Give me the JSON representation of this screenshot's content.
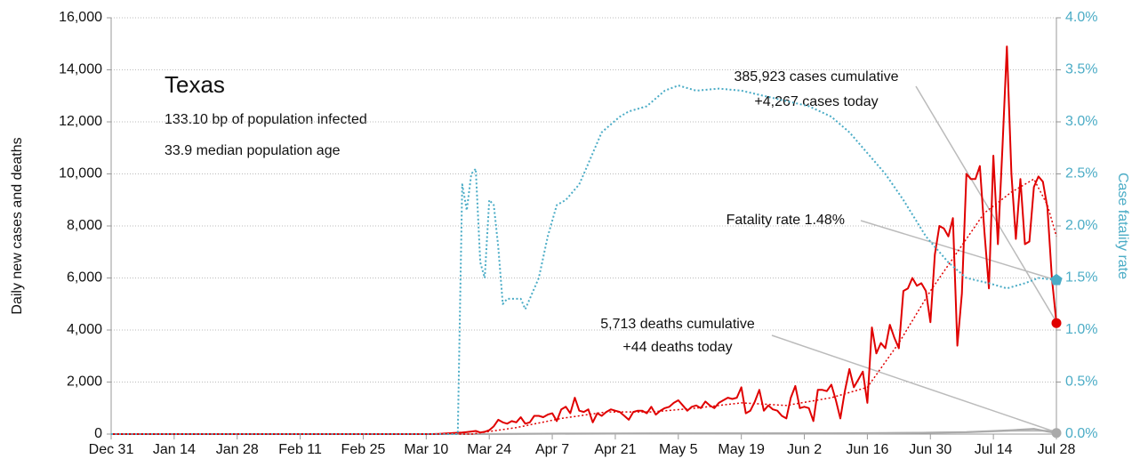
{
  "chart_data": {
    "type": "line",
    "title": "Texas",
    "subtitle": [
      "133.10 bp of population infected",
      "33.9 median population age"
    ],
    "ylabel": "Daily new cases and deaths",
    "y2label": "Case fatality rate",
    "xlim": [
      0,
      210
    ],
    "xticks": [
      {
        "value": 0,
        "label": "Dec 31"
      },
      {
        "value": 14,
        "label": "Jan 14"
      },
      {
        "value": 28,
        "label": "Jan 28"
      },
      {
        "value": 42,
        "label": "Feb 11"
      },
      {
        "value": 56,
        "label": "Feb 25"
      },
      {
        "value": 70,
        "label": "Mar 10"
      },
      {
        "value": 84,
        "label": "Mar 24"
      },
      {
        "value": 98,
        "label": "Apr 7"
      },
      {
        "value": 112,
        "label": "Apr 21"
      },
      {
        "value": 126,
        "label": "May 5"
      },
      {
        "value": 140,
        "label": "May 19"
      },
      {
        "value": 154,
        "label": "Jun 2"
      },
      {
        "value": 168,
        "label": "Jun 16"
      },
      {
        "value": 182,
        "label": "Jun 30"
      },
      {
        "value": 196,
        "label": "Jul 14"
      },
      {
        "value": 210,
        "label": "Jul 28"
      }
    ],
    "ylim": [
      0,
      16000
    ],
    "yticks": [
      0,
      {
        "value": 2000,
        "label": "2,000"
      },
      {
        "value": 4000,
        "label": "4,000"
      },
      {
        "value": 6000,
        "label": "6,000"
      },
      {
        "value": 8000,
        "label": "8,000"
      },
      {
        "value": 10000,
        "label": "10,000"
      },
      {
        "value": 12000,
        "label": "12,000"
      },
      {
        "value": 14000,
        "label": "14,000"
      },
      {
        "value": 16000,
        "label": "16,000"
      }
    ],
    "y2lim": [
      0,
      4
    ],
    "y2ticks": [
      {
        "value": 0,
        "label": "0.0%"
      },
      {
        "value": 0.5,
        "label": "0.5%"
      },
      {
        "value": 1,
        "label": "1.0%"
      },
      {
        "value": 1.5,
        "label": "1.5%"
      },
      {
        "value": 2,
        "label": "2.0%"
      },
      {
        "value": 2.5,
        "label": "2.5%"
      },
      {
        "value": 3,
        "label": "3.0%"
      },
      {
        "value": 3.5,
        "label": "3.5%"
      },
      {
        "value": 4,
        "label": "4.0%"
      }
    ],
    "y2color": "#4bacc6",
    "grid": true,
    "series": [
      {
        "color": "#bbbbbb",
        "style": "solid",
        "width": 2,
        "x": [
          0,
          80,
          120,
          170,
          190,
          200,
          210
        ],
        "values": [
          0,
          0,
          20,
          30,
          70,
          130,
          130
        ]
      },
      {
        "color": "#aaaaaa",
        "style": "solid",
        "width": 2,
        "marker": "circle",
        "x": [
          0,
          80,
          100,
          130,
          160,
          180,
          190,
          196,
          200,
          205,
          208,
          210
        ],
        "values": [
          0,
          0,
          20,
          30,
          30,
          50,
          80,
          120,
          150,
          200,
          100,
          44
        ]
      },
      {
        "color": "#e00000",
        "style": "dotted",
        "width": 1.5,
        "x": [
          0,
          80,
          84,
          90,
          100,
          110,
          120,
          130,
          140,
          150,
          160,
          168,
          175,
          182,
          188,
          194,
          200,
          205,
          208,
          210
        ],
        "values": [
          0,
          0,
          100,
          250,
          600,
          850,
          850,
          1000,
          1200,
          1100,
          1400,
          1800,
          3500,
          5500,
          7000,
          8500,
          9300,
          9800,
          8800,
          7600
        ]
      },
      {
        "color": "#e00000",
        "style": "solid",
        "width": 2,
        "marker": "circle",
        "x": [
          0,
          70,
          71,
          72,
          73,
          74,
          75,
          76,
          77,
          78,
          79,
          80,
          81,
          82,
          83,
          84,
          85,
          86,
          87,
          88,
          89,
          90,
          91,
          92,
          93,
          94,
          95,
          96,
          97,
          98,
          99,
          100,
          101,
          102,
          103,
          104,
          105,
          106,
          107,
          108,
          109,
          110,
          111,
          112,
          113,
          114,
          115,
          116,
          117,
          118,
          119,
          120,
          121,
          122,
          123,
          124,
          125,
          126,
          127,
          128,
          129,
          130,
          131,
          132,
          133,
          134,
          135,
          136,
          137,
          138,
          139,
          140,
          141,
          142,
          143,
          144,
          145,
          146,
          147,
          148,
          149,
          150,
          151,
          152,
          153,
          154,
          155,
          156,
          157,
          158,
          159,
          160,
          161,
          162,
          163,
          164,
          165,
          166,
          167,
          168,
          169,
          170,
          171,
          172,
          173,
          174,
          175,
          176,
          177,
          178,
          179,
          180,
          181,
          182,
          183,
          184,
          185,
          186,
          187,
          188,
          189,
          190,
          191,
          192,
          193,
          194,
          195,
          196,
          197,
          198,
          199,
          200,
          201,
          202,
          203,
          204,
          205,
          206,
          207,
          208,
          209,
          210
        ],
        "values": [
          0,
          0,
          0,
          5,
          10,
          20,
          30,
          40,
          50,
          60,
          80,
          100,
          120,
          60,
          90,
          150,
          300,
          550,
          450,
          400,
          500,
          450,
          650,
          400,
          450,
          700,
          700,
          650,
          750,
          800,
          500,
          950,
          1050,
          800,
          1400,
          900,
          850,
          950,
          450,
          800,
          700,
          850,
          950,
          900,
          850,
          700,
          550,
          850,
          900,
          900,
          800,
          1050,
          750,
          900,
          1000,
          1050,
          1200,
          1300,
          1100,
          900,
          1050,
          1100,
          1000,
          1250,
          1100,
          1000,
          1200,
          1300,
          1400,
          1350,
          1400,
          1800,
          800,
          900,
          1250,
          1700,
          900,
          1100,
          950,
          900,
          700,
          600,
          1400,
          1850,
          1000,
          1050,
          1000,
          500,
          1700,
          1700,
          1650,
          1900,
          1300,
          600,
          1650,
          2500,
          1800,
          2100,
          2400,
          1200,
          4100,
          3100,
          3500,
          3300,
          4200,
          3700,
          3300,
          5500,
          5600,
          6000,
          5700,
          5800,
          5500,
          4300,
          6900,
          8000,
          7900,
          7600,
          8300,
          3400,
          5400,
          10000,
          9800,
          9800,
          10300,
          7800,
          5600,
          10700,
          7300,
          11000,
          14900,
          10000,
          7500,
          9800,
          7300,
          7400,
          9500,
          9900,
          9700,
          8700,
          6000,
          4267
        ]
      },
      {
        "color": "#4bacc6",
        "style": "dotted",
        "width": 2,
        "axis": "y2",
        "marker": "pentagon",
        "x": [
          0,
          77,
          78,
          79,
          80,
          81,
          82,
          83,
          84,
          85,
          86,
          87,
          88,
          91,
          92,
          93,
          95,
          97,
          99,
          101,
          104,
          106,
          109,
          113,
          115,
          119,
          123,
          126,
          130,
          135,
          140,
          145,
          150,
          155,
          160,
          164,
          168,
          172,
          176,
          181,
          186,
          190,
          195,
          199,
          203,
          206,
          210
        ],
        "values": [
          0,
          0,
          2.4,
          2.15,
          2.5,
          2.55,
          1.65,
          1.5,
          2.25,
          2.2,
          1.8,
          1.25,
          1.3,
          1.3,
          1.2,
          1.3,
          1.5,
          1.9,
          2.2,
          2.25,
          2.4,
          2.6,
          2.9,
          3.05,
          3.1,
          3.15,
          3.3,
          3.35,
          3.3,
          3.32,
          3.3,
          3.25,
          3.2,
          3.15,
          3.05,
          2.9,
          2.7,
          2.5,
          2.25,
          1.9,
          1.65,
          1.5,
          1.45,
          1.4,
          1.45,
          1.5,
          1.48
        ]
      }
    ],
    "annotations": [
      {
        "lines": [
          "385,923 cases cumulative",
          "+4,267 cases today"
        ]
      },
      {
        "lines": [
          "Fatality rate 1.48%"
        ]
      },
      {
        "lines": [
          "5,713 deaths cumulative",
          "+44 deaths today"
        ]
      }
    ]
  }
}
